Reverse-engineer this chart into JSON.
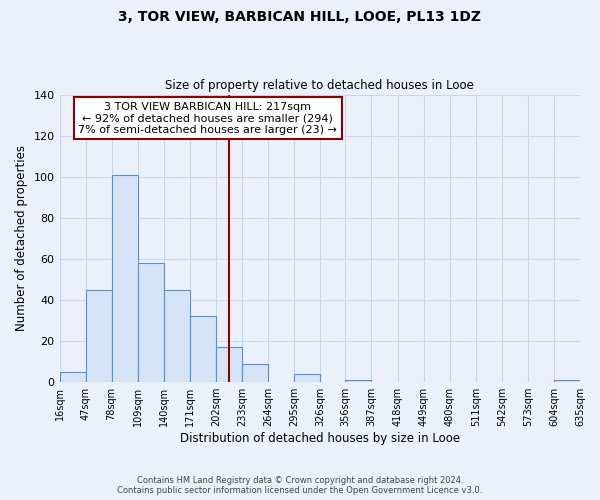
{
  "title": "3, TOR VIEW, BARBICAN HILL, LOOE, PL13 1DZ",
  "subtitle": "Size of property relative to detached houses in Looe",
  "xlabel": "Distribution of detached houses by size in Looe",
  "ylabel": "Number of detached properties",
  "bin_edges": [
    16,
    47,
    78,
    109,
    140,
    171,
    202,
    233,
    264,
    295,
    326,
    356,
    387,
    418,
    449,
    480,
    511,
    542,
    573,
    604,
    635
  ],
  "bar_heights": [
    5,
    45,
    101,
    58,
    45,
    32,
    17,
    9,
    0,
    4,
    0,
    1,
    0,
    0,
    0,
    0,
    0,
    0,
    0,
    1
  ],
  "bar_facecolor": "#d6e4f7",
  "bar_edgecolor": "#5b8fc9",
  "grid_color": "#c8d8ec",
  "background_color": "#eaf1fb",
  "vline_x": 217,
  "vline_color": "#8b0000",
  "annotation_text": "3 TOR VIEW BARBICAN HILL: 217sqm\n← 92% of detached houses are smaller (294)\n7% of semi-detached houses are larger (23) →",
  "annotation_box_edgecolor": "#8b0000",
  "annotation_box_facecolor": "#ffffff",
  "ylim": [
    0,
    140
  ],
  "yticks": [
    0,
    20,
    40,
    60,
    80,
    100,
    120,
    140
  ],
  "footer_line1": "Contains HM Land Registry data © Crown copyright and database right 2024.",
  "footer_line2": "Contains public sector information licensed under the Open Government Licence v3.0."
}
